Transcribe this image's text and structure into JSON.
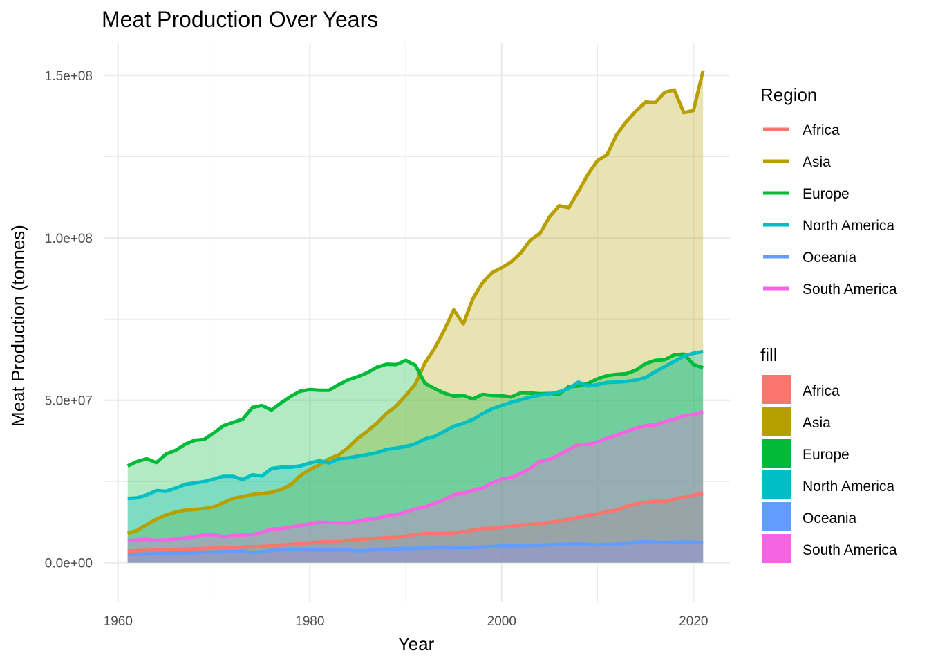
{
  "chart_data": {
    "type": "area",
    "title": "Meat Production Over Years",
    "xlabel": "Year",
    "ylabel": "Meat Production (tonnes)",
    "xlim": [
      1958.5,
      2023.8
    ],
    "ylim": [
      -12000000,
      160000000
    ],
    "x_ticks": [
      1960,
      1980,
      2000,
      2020
    ],
    "x_tick_labels": [
      "1960",
      "1980",
      "2000",
      "2020"
    ],
    "y_ticks": [
      0,
      50000000,
      100000000,
      150000000
    ],
    "y_tick_labels": [
      "0.0e+00",
      "5.0e+07",
      "1.0e+08",
      "1.5e+08"
    ],
    "grid": true,
    "legend_position": "right",
    "legends": [
      {
        "title": "Region",
        "kind": "line",
        "entries": [
          "Africa",
          "Asia",
          "Europe",
          "North America",
          "Oceania",
          "South America"
        ]
      },
      {
        "title": "fill",
        "kind": "fill",
        "entries": [
          "Africa",
          "Asia",
          "Europe",
          "North America",
          "Oceania",
          "South America"
        ]
      }
    ],
    "x_start": 1961,
    "x_end": 2021,
    "unit_note": "values in millions of tonnes",
    "series": [
      {
        "name": "Africa",
        "line_color": "#F8766D",
        "fill_color": "#F8766D",
        "values": [
          3.6,
          3.7,
          3.8,
          3.9,
          4.0,
          4.1,
          4.2,
          4.3,
          4.4,
          4.5,
          4.6,
          4.7,
          4.8,
          4.9,
          5.0,
          5.2,
          5.4,
          5.6,
          5.9,
          6.1,
          6.3,
          6.5,
          6.7,
          6.9,
          7.1,
          7.3,
          7.5,
          7.7,
          7.9,
          8.2,
          8.7,
          9.0,
          9.0,
          9.0,
          9.2,
          9.6,
          10.0,
          10.5,
          10.6,
          10.9,
          11.2,
          11.6,
          11.8,
          12.0,
          12.4,
          12.9,
          13.3,
          14.0,
          14.6,
          15.0,
          15.8,
          16.2,
          17.4,
          18.1,
          18.6,
          19.0,
          18.8,
          19.5,
          20.2,
          20.8,
          21.3
        ]
      },
      {
        "name": "Asia",
        "line_color": "#B79F00",
        "fill_color": "#B79F00",
        "values": [
          9.0,
          10.0,
          11.8,
          13.4,
          14.7,
          15.6,
          16.2,
          16.4,
          16.7,
          17.2,
          18.5,
          19.8,
          20.4,
          21.0,
          21.3,
          21.7,
          22.5,
          24.0,
          26.8,
          28.7,
          30.2,
          32.0,
          33.2,
          35.5,
          38.3,
          40.5,
          43.0,
          46.0,
          48.2,
          51.5,
          55.0,
          61.5,
          66.0,
          71.5,
          77.8,
          73.5,
          81.3,
          86.2,
          89.3,
          90.8,
          92.6,
          95.4,
          99.3,
          101.4,
          106.5,
          109.9,
          109.3,
          114.3,
          119.6,
          123.8,
          125.6,
          131.8,
          135.8,
          139.0,
          141.8,
          141.6,
          144.8,
          145.5,
          138.5,
          139.2,
          151.5
        ]
      },
      {
        "name": "Europe",
        "line_color": "#00BA38",
        "fill_color": "#00BA38",
        "values": [
          29.8,
          31.2,
          32.0,
          30.8,
          33.5,
          34.6,
          36.5,
          37.7,
          38.0,
          40.0,
          42.2,
          43.2,
          44.2,
          47.8,
          48.4,
          47.0,
          49.2,
          51.2,
          52.8,
          53.3,
          53.1,
          53.1,
          54.8,
          56.3,
          57.3,
          58.5,
          60.2,
          61.1,
          61.0,
          62.3,
          60.8,
          55.2,
          53.6,
          52.2,
          51.3,
          51.5,
          50.4,
          51.8,
          51.5,
          51.4,
          51.0,
          52.3,
          52.2,
          52.0,
          52.1,
          51.9,
          54.2,
          54.4,
          55.2,
          56.6,
          57.6,
          58.0,
          58.2,
          59.3,
          61.3,
          62.3,
          62.5,
          64.0,
          64.2,
          61.0,
          60.0
        ]
      },
      {
        "name": "North America",
        "line_color": "#00BFC4",
        "fill_color": "#00BFC4",
        "values": [
          19.8,
          20.0,
          20.9,
          22.2,
          22.0,
          23.0,
          24.1,
          24.6,
          25.0,
          25.8,
          26.6,
          26.6,
          25.6,
          27.1,
          26.7,
          29.0,
          29.4,
          29.4,
          29.8,
          30.7,
          31.4,
          30.7,
          32.0,
          32.3,
          32.8,
          33.3,
          33.9,
          34.9,
          35.3,
          35.8,
          36.6,
          38.1,
          38.9,
          40.4,
          42.0,
          42.9,
          44.1,
          45.9,
          47.4,
          48.4,
          49.4,
          50.2,
          51.0,
          51.6,
          52.0,
          52.6,
          53.6,
          55.6,
          54.4,
          54.8,
          55.5,
          55.6,
          55.8,
          56.2,
          57.0,
          58.8,
          60.4,
          62.0,
          63.6,
          64.5,
          65.0
        ]
      },
      {
        "name": "Oceania",
        "line_color": "#619CFF",
        "fill_color": "#619CFF",
        "values": [
          2.5,
          2.6,
          2.7,
          2.8,
          2.9,
          3.0,
          3.0,
          3.1,
          3.2,
          3.3,
          3.4,
          3.5,
          3.6,
          3.1,
          3.4,
          3.8,
          4.0,
          4.2,
          4.2,
          3.9,
          3.9,
          3.9,
          3.9,
          4.0,
          3.6,
          3.8,
          4.0,
          4.2,
          4.3,
          4.3,
          4.4,
          4.5,
          4.6,
          4.6,
          4.7,
          4.7,
          4.7,
          4.8,
          5.0,
          5.1,
          5.2,
          5.2,
          5.3,
          5.4,
          5.5,
          5.6,
          5.7,
          5.8,
          5.6,
          5.5,
          5.6,
          5.7,
          6.0,
          6.3,
          6.5,
          6.3,
          6.2,
          6.3,
          6.4,
          6.3,
          6.2
        ]
      },
      {
        "name": "South America",
        "line_color": "#F564E3",
        "fill_color": "#F564E3",
        "values": [
          6.8,
          7.0,
          7.2,
          6.9,
          7.0,
          7.3,
          7.6,
          8.0,
          8.6,
          8.6,
          8.0,
          8.4,
          8.5,
          8.7,
          9.4,
          10.4,
          10.5,
          11.0,
          11.4,
          12.0,
          12.5,
          12.3,
          12.3,
          12.2,
          12.8,
          13.4,
          13.6,
          14.5,
          14.8,
          15.6,
          16.6,
          17.2,
          18.3,
          19.4,
          20.9,
          21.4,
          22.3,
          23.0,
          24.6,
          25.8,
          26.3,
          27.5,
          29.1,
          31.2,
          31.8,
          33.3,
          34.9,
          36.4,
          36.5,
          37.2,
          38.4,
          39.3,
          40.4,
          41.4,
          42.2,
          42.4,
          43.4,
          44.2,
          45.3,
          45.6,
          46.5
        ]
      }
    ]
  }
}
